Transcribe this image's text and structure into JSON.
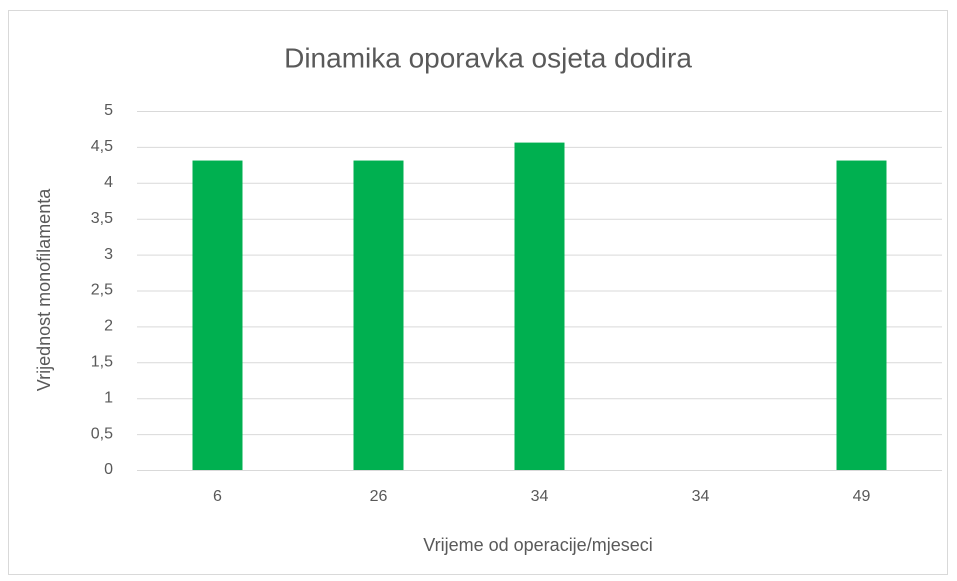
{
  "chart_data": {
    "type": "bar",
    "title": "Dinamika oporavka osjeta dodira",
    "x_label": "Vrijeme od operacije/mjeseci",
    "y_label": "Vrijednost monofilamenta",
    "categories": [
      "6",
      "26",
      "34",
      "34",
      "49"
    ],
    "values": [
      4.31,
      4.31,
      4.56,
      null,
      4.31
    ],
    "color": "#00b050",
    "ylim": [
      0,
      5
    ],
    "yticks": [
      0,
      {
        "value": 0.5,
        "label": "0,5"
      },
      1,
      {
        "value": 1.5,
        "label": "1,5"
      },
      2,
      {
        "value": 2.5,
        "label": "2,5"
      },
      3,
      {
        "value": 3.5,
        "label": "3,5"
      },
      4,
      {
        "value": 4.5,
        "label": "4,5"
      },
      5
    ],
    "grid": true
  }
}
